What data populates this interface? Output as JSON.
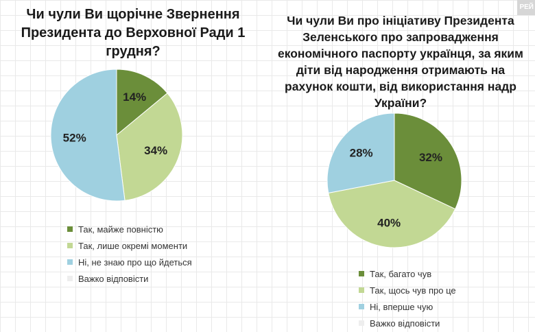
{
  "watermark": "РЕЙ",
  "chart_data": [
    {
      "type": "pie",
      "title": "Чи чули Ви щорічне Звернення Президента до Верховної Ради 1 грудня?",
      "categories": [
        "Так, майже повністю",
        "Так, лише окремі моменти",
        "Ні, не знаю про що йдеться",
        "Важко відповісти"
      ],
      "values": [
        14,
        34,
        52,
        0
      ],
      "labels": [
        "14%",
        "34%",
        "52%",
        ""
      ],
      "colors": [
        "#6b8e3a",
        "#c2d894",
        "#9fd0e0",
        "#eeeeee"
      ],
      "legend_position": "bottom"
    },
    {
      "type": "pie",
      "title": "Чи чули Ви про ініціативу Президента Зеленського про запровадження економічного паспорту українця, за яким діти від народження отримають на рахунок кошти, від використання надр України?",
      "categories": [
        "Так, багато чув",
        "Так, щось чув про це",
        "Ні, вперше чую",
        "Важко відповісти"
      ],
      "values": [
        32,
        40,
        28,
        0
      ],
      "labels": [
        "32%",
        "40%",
        "28%",
        ""
      ],
      "colors": [
        "#6b8e3a",
        "#c2d894",
        "#9fd0e0",
        "#eeeeee"
      ],
      "legend_position": "bottom"
    }
  ]
}
